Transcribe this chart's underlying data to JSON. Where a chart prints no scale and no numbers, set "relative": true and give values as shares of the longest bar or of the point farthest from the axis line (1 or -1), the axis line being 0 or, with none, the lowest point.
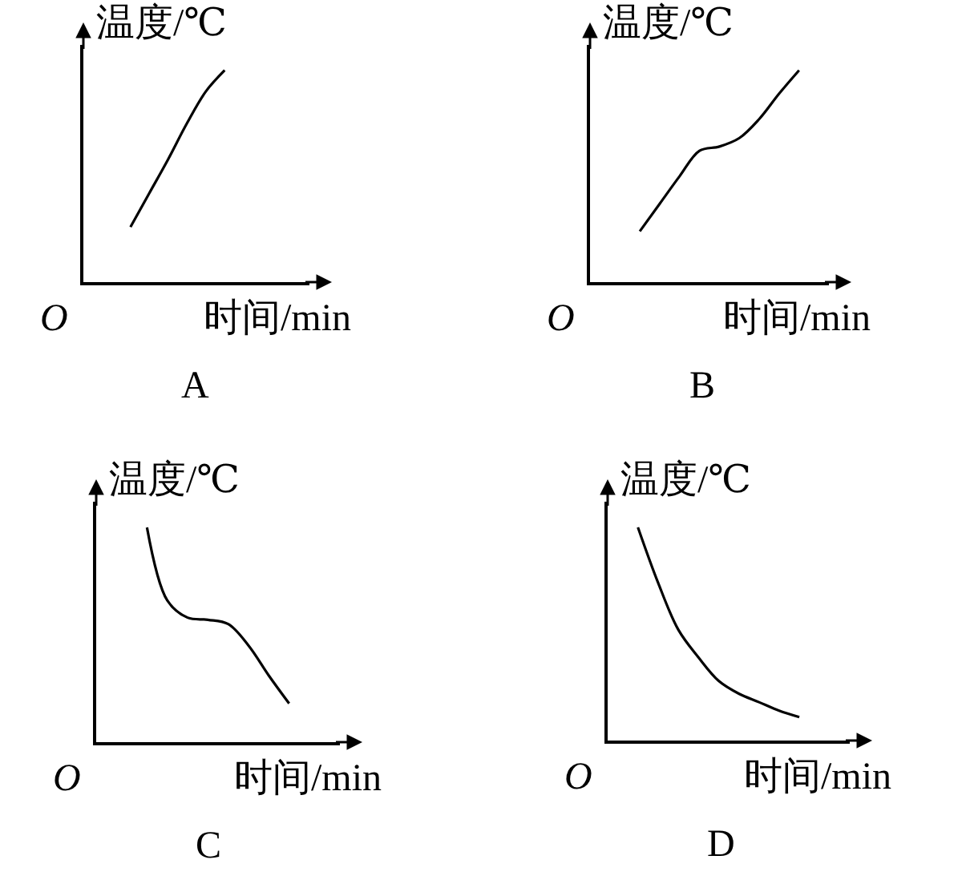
{
  "chart_data": [
    {
      "type": "line",
      "title": "A",
      "xlabel": "时间/min",
      "ylabel": "温度/℃",
      "annotations": [
        "O"
      ],
      "relative": true,
      "categories": [
        null,
        null,
        null,
        null,
        null,
        null,
        null,
        null,
        null,
        null,
        null,
        null
      ],
      "series": [
        {
          "color": "#000000",
          "values": [
            null,
            null,
            0.26,
            0.42,
            0.58,
            0.75,
            0.9,
            1.0,
            null,
            null,
            null,
            null
          ]
        }
      ]
    },
    {
      "type": "line",
      "title": "B",
      "xlabel": "时间/min",
      "ylabel": "温度/℃",
      "annotations": [
        "O"
      ],
      "relative": true,
      "categories": [
        null,
        null,
        null,
        null,
        null,
        null,
        null,
        null,
        null,
        null,
        null,
        null
      ],
      "series": [
        {
          "color": "#000000",
          "values": [
            null,
            null,
            0.24,
            0.37,
            0.5,
            0.62,
            0.64,
            0.68,
            0.77,
            0.89,
            1.0,
            null
          ]
        }
      ]
    },
    {
      "type": "line",
      "title": "C",
      "xlabel": "时间/min",
      "ylabel": "温度/℃",
      "annotations": [
        "O"
      ],
      "relative": true,
      "categories": [
        null,
        null,
        null,
        null,
        null,
        null,
        null,
        null,
        null,
        null,
        null,
        null
      ],
      "series": [
        {
          "color": "#000000",
          "values": [
            null,
            null,
            1.0,
            0.66,
            0.58,
            0.57,
            0.55,
            0.45,
            0.31,
            0.18,
            null,
            null
          ]
        }
      ]
    },
    {
      "type": "line",
      "title": "D",
      "xlabel": "时间/min",
      "ylabel": "温度/℃",
      "annotations": [
        "O"
      ],
      "relative": true,
      "categories": [
        null,
        null,
        null,
        null,
        null,
        null,
        null,
        null,
        null,
        null,
        null,
        null
      ],
      "series": [
        {
          "color": "#000000",
          "values": [
            null,
            1.0,
            0.74,
            0.52,
            0.39,
            0.28,
            0.22,
            0.18,
            0.14,
            0.11,
            null,
            null
          ]
        }
      ]
    }
  ]
}
